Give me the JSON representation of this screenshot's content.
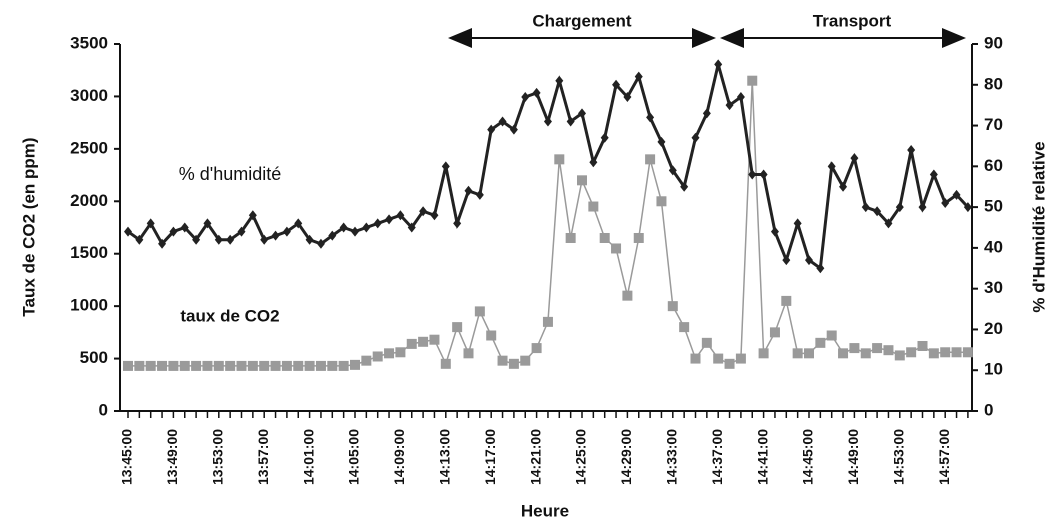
{
  "chart_data": {
    "type": "line",
    "xlabel": "Heure",
    "ylabel": "Taux de CO2 (en ppm)",
    "y2label": "% d'Humidité relative",
    "annotations": [
      "% d'humidité",
      "taux de CO2",
      "Chargement",
      "Transport"
    ],
    "categories": [
      "13:45:00",
      null,
      null,
      null,
      "13:49:00",
      null,
      null,
      null,
      "13:53:00",
      null,
      null,
      null,
      "13:57:00",
      null,
      null,
      null,
      "14:01:00",
      null,
      null,
      null,
      "14:05:00",
      null,
      null,
      null,
      "14:09:00",
      null,
      null,
      null,
      "14:13:00",
      null,
      null,
      null,
      "14:17:00",
      null,
      null,
      null,
      "14:21:00",
      null,
      null,
      null,
      "14:25:00",
      null,
      null,
      null,
      "14:29:00",
      null,
      null,
      null,
      "14:33:00",
      null,
      null,
      null,
      "14:37:00",
      null,
      null,
      null,
      "14:41:00",
      null,
      null,
      null,
      "14:45:00",
      null,
      null,
      null,
      "14:49:00",
      null,
      null,
      null,
      "14:53:00",
      null,
      null,
      null,
      "14:57:00",
      null,
      null
    ],
    "series": [
      {
        "name": "% d'humidité",
        "color": "#222222",
        "axis": "y2",
        "marker": "diamond",
        "values": [
          44,
          42,
          46,
          41,
          44,
          45,
          42,
          46,
          42,
          42,
          44,
          48,
          42,
          43,
          44,
          46,
          42,
          41,
          43,
          45,
          44,
          45,
          46,
          47,
          48,
          45,
          49,
          48,
          60,
          46,
          54,
          53,
          69,
          71,
          69,
          77,
          78,
          71,
          81,
          71,
          73,
          61,
          67,
          80,
          77,
          82,
          72,
          66,
          59,
          55,
          67,
          73,
          85,
          75,
          77,
          58,
          58,
          44,
          37,
          46,
          37,
          35,
          60,
          55,
          62,
          50,
          49,
          46,
          50,
          64,
          50,
          58,
          51,
          53,
          50
        ]
      },
      {
        "name": "taux de CO2",
        "color": "#9a9a9a",
        "axis": "y",
        "marker": "square",
        "values": [
          430,
          430,
          430,
          430,
          430,
          430,
          430,
          430,
          430,
          430,
          430,
          430,
          430,
          430,
          430,
          430,
          430,
          430,
          430,
          430,
          440,
          480,
          520,
          550,
          560,
          640,
          660,
          680,
          450,
          800,
          550,
          950,
          720,
          480,
          450,
          480,
          600,
          850,
          2400,
          1650,
          2200,
          1950,
          1650,
          1550,
          1100,
          1650,
          2400,
          2000,
          1000,
          800,
          500,
          650,
          500,
          450,
          500,
          3150,
          550,
          750,
          1050,
          550,
          550,
          650,
          720,
          550,
          600,
          550,
          600,
          580,
          530,
          560,
          620,
          550,
          560,
          560,
          560
        ]
      }
    ],
    "ylim": [
      0,
      3500
    ],
    "yticks": [
      0,
      500,
      1000,
      1500,
      2000,
      2500,
      3000,
      3500
    ],
    "y2lim": [
      0,
      90
    ],
    "y2ticks": [
      0,
      10,
      20,
      30,
      40,
      50,
      60,
      70,
      80,
      90
    ]
  }
}
